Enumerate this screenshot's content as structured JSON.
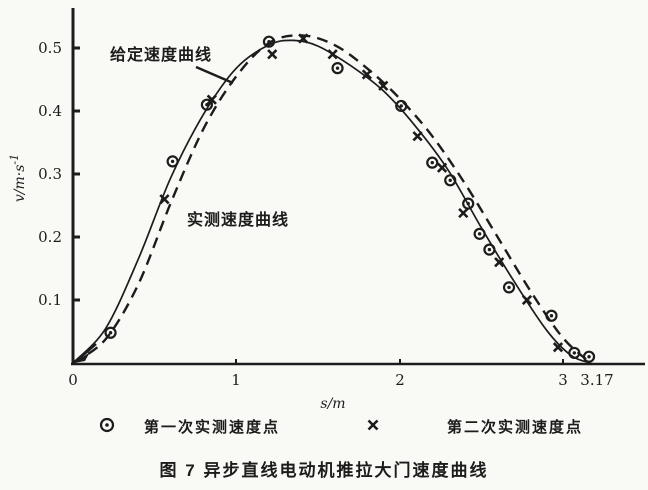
{
  "colors": {
    "ink": "#1c1c1c",
    "paper": "#f9f9f6"
  },
  "chart_data": {
    "type": "line",
    "title": "图 7  异步直线电动机推拉大门速度曲线",
    "xlabel": "s/m",
    "ylabel_base": "v/m·s",
    "ylabel_sup": "-1",
    "xlim": [
      0,
      3.5
    ],
    "ylim": [
      0,
      0.55
    ],
    "grid": false,
    "x_tick_labels": [
      "0",
      "1",
      "2",
      "3",
      "3.17"
    ],
    "x_tick_values": [
      0,
      1,
      2,
      3,
      3.17
    ],
    "y_tick_labels": [
      "0.5",
      "0.4",
      "0.3",
      "0.2",
      "0.1"
    ],
    "y_tick_values": [
      0.5,
      0.4,
      0.3,
      0.2,
      0.1
    ],
    "series": [
      {
        "id": "given-curve",
        "name": "给定速度曲线",
        "kind": "line",
        "style": "solid",
        "points": [
          [
            0,
            0
          ],
          [
            0.2,
            0.055
          ],
          [
            0.4,
            0.165
          ],
          [
            0.6,
            0.295
          ],
          [
            0.8,
            0.395
          ],
          [
            1.0,
            0.468
          ],
          [
            1.2,
            0.505
          ],
          [
            1.35,
            0.512
          ],
          [
            1.5,
            0.503
          ],
          [
            1.7,
            0.472
          ],
          [
            1.9,
            0.432
          ],
          [
            2.1,
            0.375
          ],
          [
            2.3,
            0.305
          ],
          [
            2.5,
            0.215
          ],
          [
            2.7,
            0.13
          ],
          [
            2.9,
            0.052
          ],
          [
            3.05,
            0.012
          ],
          [
            3.17,
            0.0
          ]
        ]
      },
      {
        "id": "measured-curve",
        "name": "实测速度曲线",
        "kind": "line",
        "style": "dashed",
        "points": [
          [
            0,
            0
          ],
          [
            0.2,
            0.038
          ],
          [
            0.4,
            0.125
          ],
          [
            0.6,
            0.255
          ],
          [
            0.8,
            0.372
          ],
          [
            1.0,
            0.455
          ],
          [
            1.2,
            0.508
          ],
          [
            1.4,
            0.52
          ],
          [
            1.6,
            0.505
          ],
          [
            1.8,
            0.468
          ],
          [
            2.0,
            0.42
          ],
          [
            2.2,
            0.36
          ],
          [
            2.4,
            0.285
          ],
          [
            2.6,
            0.2
          ],
          [
            2.8,
            0.115
          ],
          [
            3.0,
            0.04
          ],
          [
            3.17,
            0.0
          ]
        ]
      },
      {
        "id": "first-run-points",
        "name": "第一次实测速度点",
        "kind": "scatter",
        "marker": "circle-dot",
        "points": [
          [
            0.23,
            0.048
          ],
          [
            0.61,
            0.32
          ],
          [
            0.82,
            0.41
          ],
          [
            1.2,
            0.51
          ],
          [
            1.62,
            0.468
          ],
          [
            2.01,
            0.408
          ],
          [
            2.2,
            0.318
          ],
          [
            2.31,
            0.29
          ],
          [
            2.42,
            0.253
          ],
          [
            2.49,
            0.205
          ],
          [
            2.55,
            0.18
          ],
          [
            2.67,
            0.12
          ],
          [
            2.93,
            0.075
          ],
          [
            3.07,
            0.016
          ],
          [
            3.16,
            0.01
          ]
        ]
      },
      {
        "id": "second-run-points",
        "name": "第二次实测速度点",
        "kind": "scatter",
        "marker": "x",
        "points": [
          [
            0.56,
            0.26
          ],
          [
            0.85,
            0.418
          ],
          [
            1.22,
            0.49
          ],
          [
            1.41,
            0.515
          ],
          [
            1.59,
            0.49
          ],
          [
            1.8,
            0.458
          ],
          [
            1.9,
            0.44
          ],
          [
            2.11,
            0.36
          ],
          [
            2.26,
            0.31
          ],
          [
            2.39,
            0.238
          ],
          [
            2.61,
            0.16
          ],
          [
            2.78,
            0.1
          ],
          [
            2.97,
            0.025
          ]
        ]
      }
    ]
  },
  "annotations": {
    "given_curve_label": "给定速度曲线",
    "measured_curve_label": "实测速度曲线"
  },
  "legend": {
    "first": {
      "marker": "circle-dot",
      "label": "第一次实测速度点"
    },
    "second": {
      "marker": "x",
      "label": "第二次实测速度点"
    }
  },
  "caption": "图 7  异步直线电动机推拉大门速度曲线"
}
